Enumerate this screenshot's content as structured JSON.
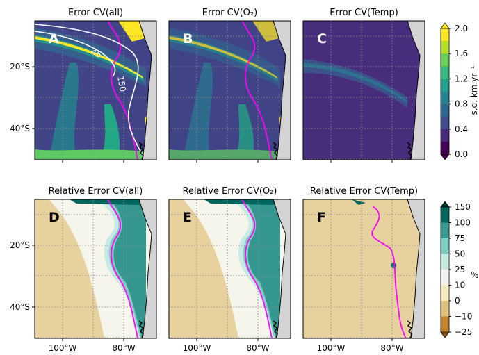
{
  "panels": [
    {
      "title": "Error CV(all)",
      "letter": "A"
    },
    {
      "title": "Error CV(O₂)",
      "letter": "B"
    },
    {
      "title": "Error CV(Temp)",
      "letter": "C"
    },
    {
      "title": "Relative Error CV(all)",
      "letter": "D"
    },
    {
      "title": "Relative Error CV(O₂)",
      "letter": "E"
    },
    {
      "title": "Relative Error CV(Temp)",
      "letter": "F"
    }
  ],
  "contour_labels": [
    "45",
    "150"
  ],
  "y_ticks": [
    "20°S",
    "40°S"
  ],
  "x_ticks": [
    "100°W",
    "80°W"
  ],
  "colorbars": {
    "top": {
      "label": "s.d. km.yr⁻¹",
      "ticks": [
        "2.0",
        "1.6",
        "1.2",
        "0.8",
        "0.4",
        "0.0"
      ]
    },
    "bottom": {
      "label": "%",
      "ticks": [
        "150",
        "100",
        "75",
        "50",
        "25",
        "10",
        "0",
        "−10",
        "−25"
      ]
    }
  }
}
